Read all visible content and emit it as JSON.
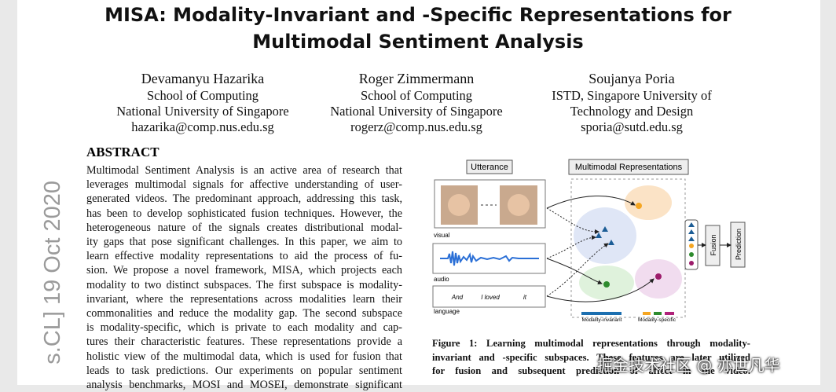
{
  "sidebar": "s.CL]   19 Oct 2020",
  "title_lines": [
    "MISA: Modality-Invariant and -Specific Representations for",
    "Multimodal Sentiment Analysis"
  ],
  "authors": [
    {
      "name": "Devamanyu Hazarika",
      "lines": [
        "School of Computing",
        "National University of Singapore",
        "hazarika@comp.nus.edu.sg"
      ]
    },
    {
      "name": "Roger Zimmermann",
      "lines": [
        "School of Computing",
        "National University of Singapore",
        "rogerz@comp.nus.edu.sg"
      ]
    },
    {
      "name": "Soujanya Poria",
      "lines": [
        "ISTD, Singapore University of",
        "Technology and Design",
        "sporia@sutd.edu.sg"
      ]
    }
  ],
  "abstract": {
    "heading": "ABSTRACT",
    "lines": [
      "Multimodal Sentiment Analysis is an active area of research that",
      "leverages multimodal signals for affective understanding of user-",
      "generated videos. The predominant approach, addressing this task,",
      "has been to develop sophisticated fusion techniques. However, the",
      "heterogeneous nature of the signals creates distributional modal-",
      "ity gaps that pose significant challenges. In this paper, we aim to",
      "learn effective modality representations to aid the process of fu-",
      "sion. We propose a novel framework, MISA, which projects each",
      "modality to two distinct subspaces. The first subspace is modality-",
      "invariant, where the representations across modalities learn their",
      "commonalities and reduce the modality gap. The second subspace",
      "is modality-specific, which is private to each modality and cap-",
      "tures their characteristic features. These representations provide a",
      "holistic view of the multimodal data, which is used for fusion that",
      "leads to task predictions. Our experiments on popular sentiment",
      "analysis benchmarks, MOSI and MOSEI, demonstrate significant"
    ]
  },
  "figure": {
    "utterance": "Utterance",
    "representations": "Multimodal Representations",
    "visual": "visual",
    "audio": "audio",
    "language": "language",
    "words": [
      "And",
      "I loved",
      "it"
    ],
    "fusion": "Fusion",
    "prediction": "Prediction",
    "invariant": "Modality-invariant",
    "specific": "Modality-specific",
    "caption_lines": [
      "Figure 1: Learning multimodal representations through modality-",
      "invariant and -specific subspaces. These features are later utilized",
      "for fusion and subsequent prediction of affect in the video."
    ]
  },
  "watermark": "掘金技术社区 @ 亦世凡华"
}
